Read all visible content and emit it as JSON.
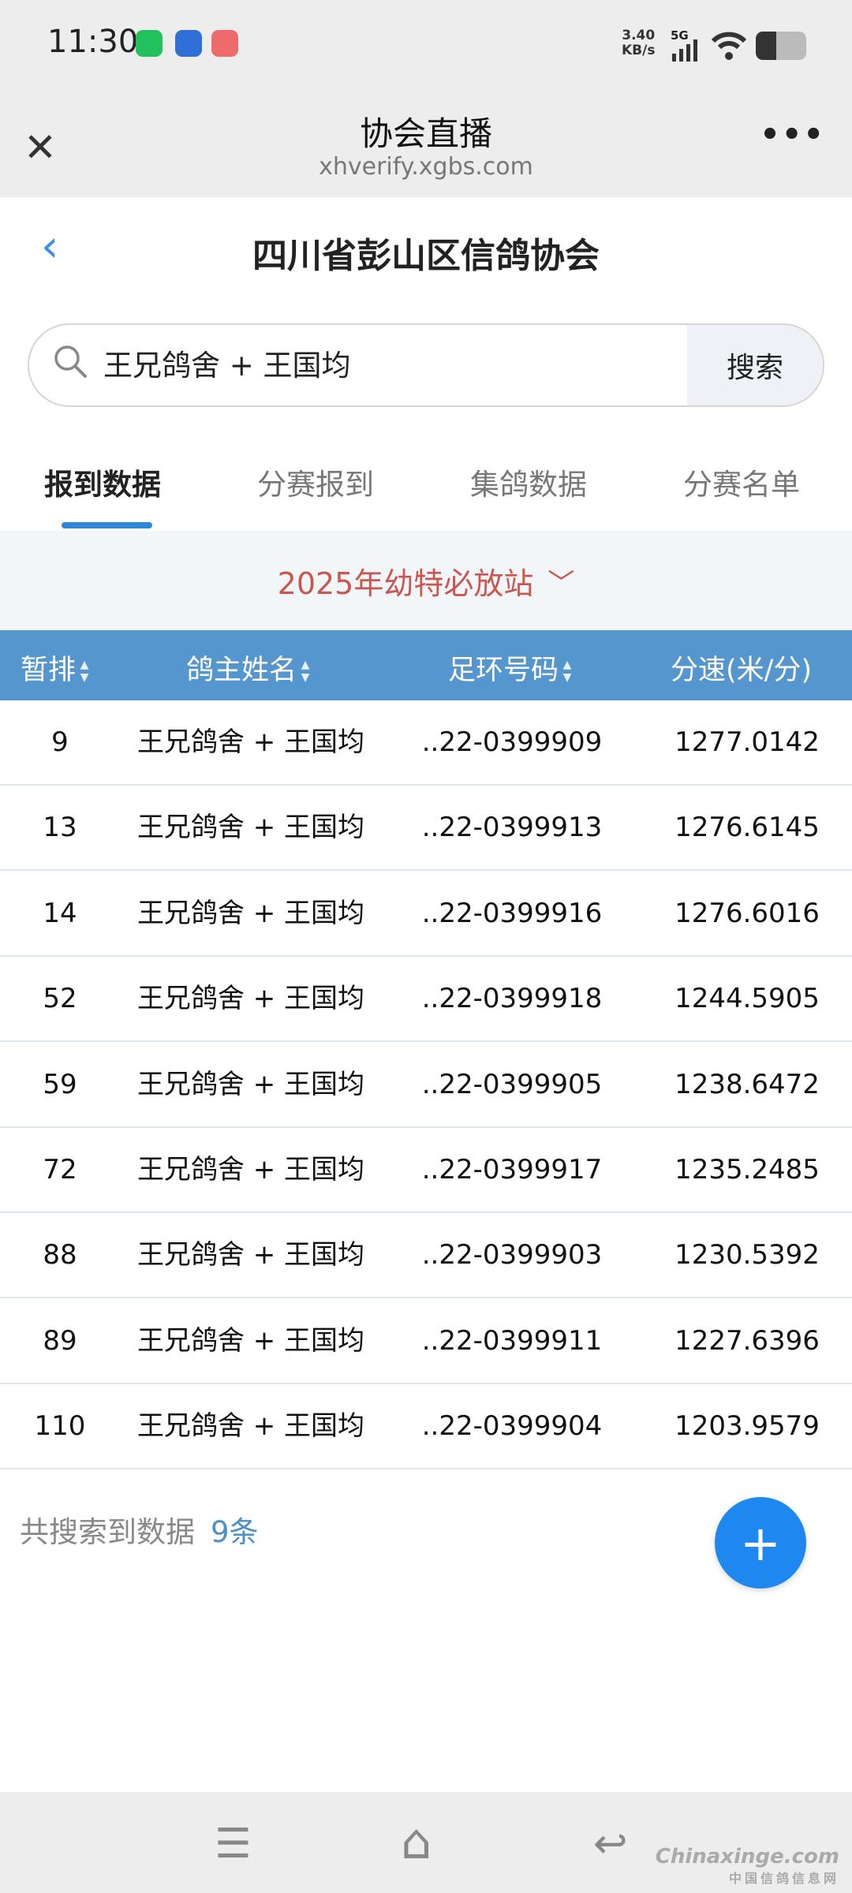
{
  "status_bar": {
    "time": "11:30",
    "net_speed": "3.40",
    "net_unit": "KB/s",
    "network": "5G",
    "icons": [
      "wechat-icon",
      "app-icon",
      "red-app-icon",
      "signal-icon",
      "wifi-icon",
      "battery-icon"
    ],
    "battery_level": 0.4
  },
  "browser": {
    "title": "协会直播",
    "url": "xhverify.xgbs.com",
    "close": "✕",
    "more": "•••"
  },
  "page": {
    "back": "‹",
    "title": "四川省彭山区信鸽协会"
  },
  "search": {
    "value": "王兄鸽舍 + 王国均",
    "button": "搜索"
  },
  "tabs": [
    {
      "label": "报到数据",
      "active": true
    },
    {
      "label": "分赛报到"
    },
    {
      "label": "集鸽数据"
    },
    {
      "label": "分赛名单"
    }
  ],
  "filter": {
    "selected": "2025年幼特必放站",
    "chevron": "﹀"
  },
  "table": {
    "columns": [
      "暂排",
      "鸽主姓名",
      "足环号码",
      "分速(米/分)"
    ],
    "sort_glyph": "▲▼",
    "rows": [
      [
        "9",
        "王兄鸽舍 + 王国均",
        "..22-0399909",
        "1277.0142"
      ],
      [
        "13",
        "王兄鸽舍 + 王国均",
        "..22-0399913",
        "1276.6145"
      ],
      [
        "14",
        "王兄鸽舍 + 王国均",
        "..22-0399916",
        "1276.6016"
      ],
      [
        "52",
        "王兄鸽舍 + 王国均",
        "..22-0399918",
        "1244.5905"
      ],
      [
        "59",
        "王兄鸽舍 + 王国均",
        "..22-0399905",
        "1238.6472"
      ],
      [
        "72",
        "王兄鸽舍 + 王国均",
        "..22-0399917",
        "1235.2485"
      ],
      [
        "88",
        "王兄鸽舍 + 王国均",
        "..22-0399903",
        "1230.5392"
      ],
      [
        "89",
        "王兄鸽舍 + 王国均",
        "..22-0399911",
        "1227.6396"
      ],
      [
        "110",
        "王兄鸽舍 + 王国均",
        "..22-0399904",
        "1203.9579"
      ]
    ]
  },
  "footer": {
    "label": "共搜索到数据",
    "count": "9条"
  },
  "fab": "+",
  "nav": {
    "menu": "☰",
    "home": "⌂",
    "back": "↩"
  },
  "watermark": {
    "text": "Chinaxinge.com",
    "sub": "中国信鸽信息网"
  },
  "colors": {
    "accent": "#2f86d6",
    "header": "#5496cd",
    "filter_text": "#c9574f",
    "fab": "#1e88f0"
  }
}
